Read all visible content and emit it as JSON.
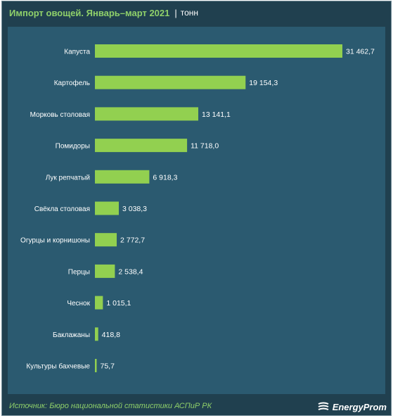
{
  "header": {
    "title": "Импорт овощей. Январь–март 2021",
    "separator": "|",
    "unit": "тонн"
  },
  "footer": {
    "source": "Источник: Бюро национальной  статистики АСПиР РК",
    "logo_text": "EnergyProm"
  },
  "colors": {
    "bar": "#92d050",
    "background": "#2b5a70",
    "frame": "#20404f",
    "accent_text": "#8fd06a"
  },
  "chart_data": {
    "type": "bar",
    "orientation": "horizontal",
    "categories": [
      "Капуста",
      "Картофель",
      "Морковь столовая",
      "Помидоры",
      "Лук репчатый",
      "Свёкла столовая",
      "Огурцы и корнишоны",
      "Перцы",
      "Чеснок",
      "Баклажаны",
      "Культуры бахчевые"
    ],
    "values": [
      31462.7,
      19154.3,
      13141.1,
      11718.0,
      6918.3,
      3038.3,
      2772.7,
      2538.4,
      1015.1,
      418.8,
      75.7
    ],
    "value_labels": [
      "31 462,7",
      "19 154,3",
      "13 141,1",
      "11 718,0",
      "6 918,3",
      "3 038,3",
      "2 772,7",
      "2 538,4",
      "1 015,1",
      "418,8",
      "75,7"
    ],
    "xlim": [
      0,
      31462.7
    ],
    "grid": false,
    "legend": "none"
  }
}
